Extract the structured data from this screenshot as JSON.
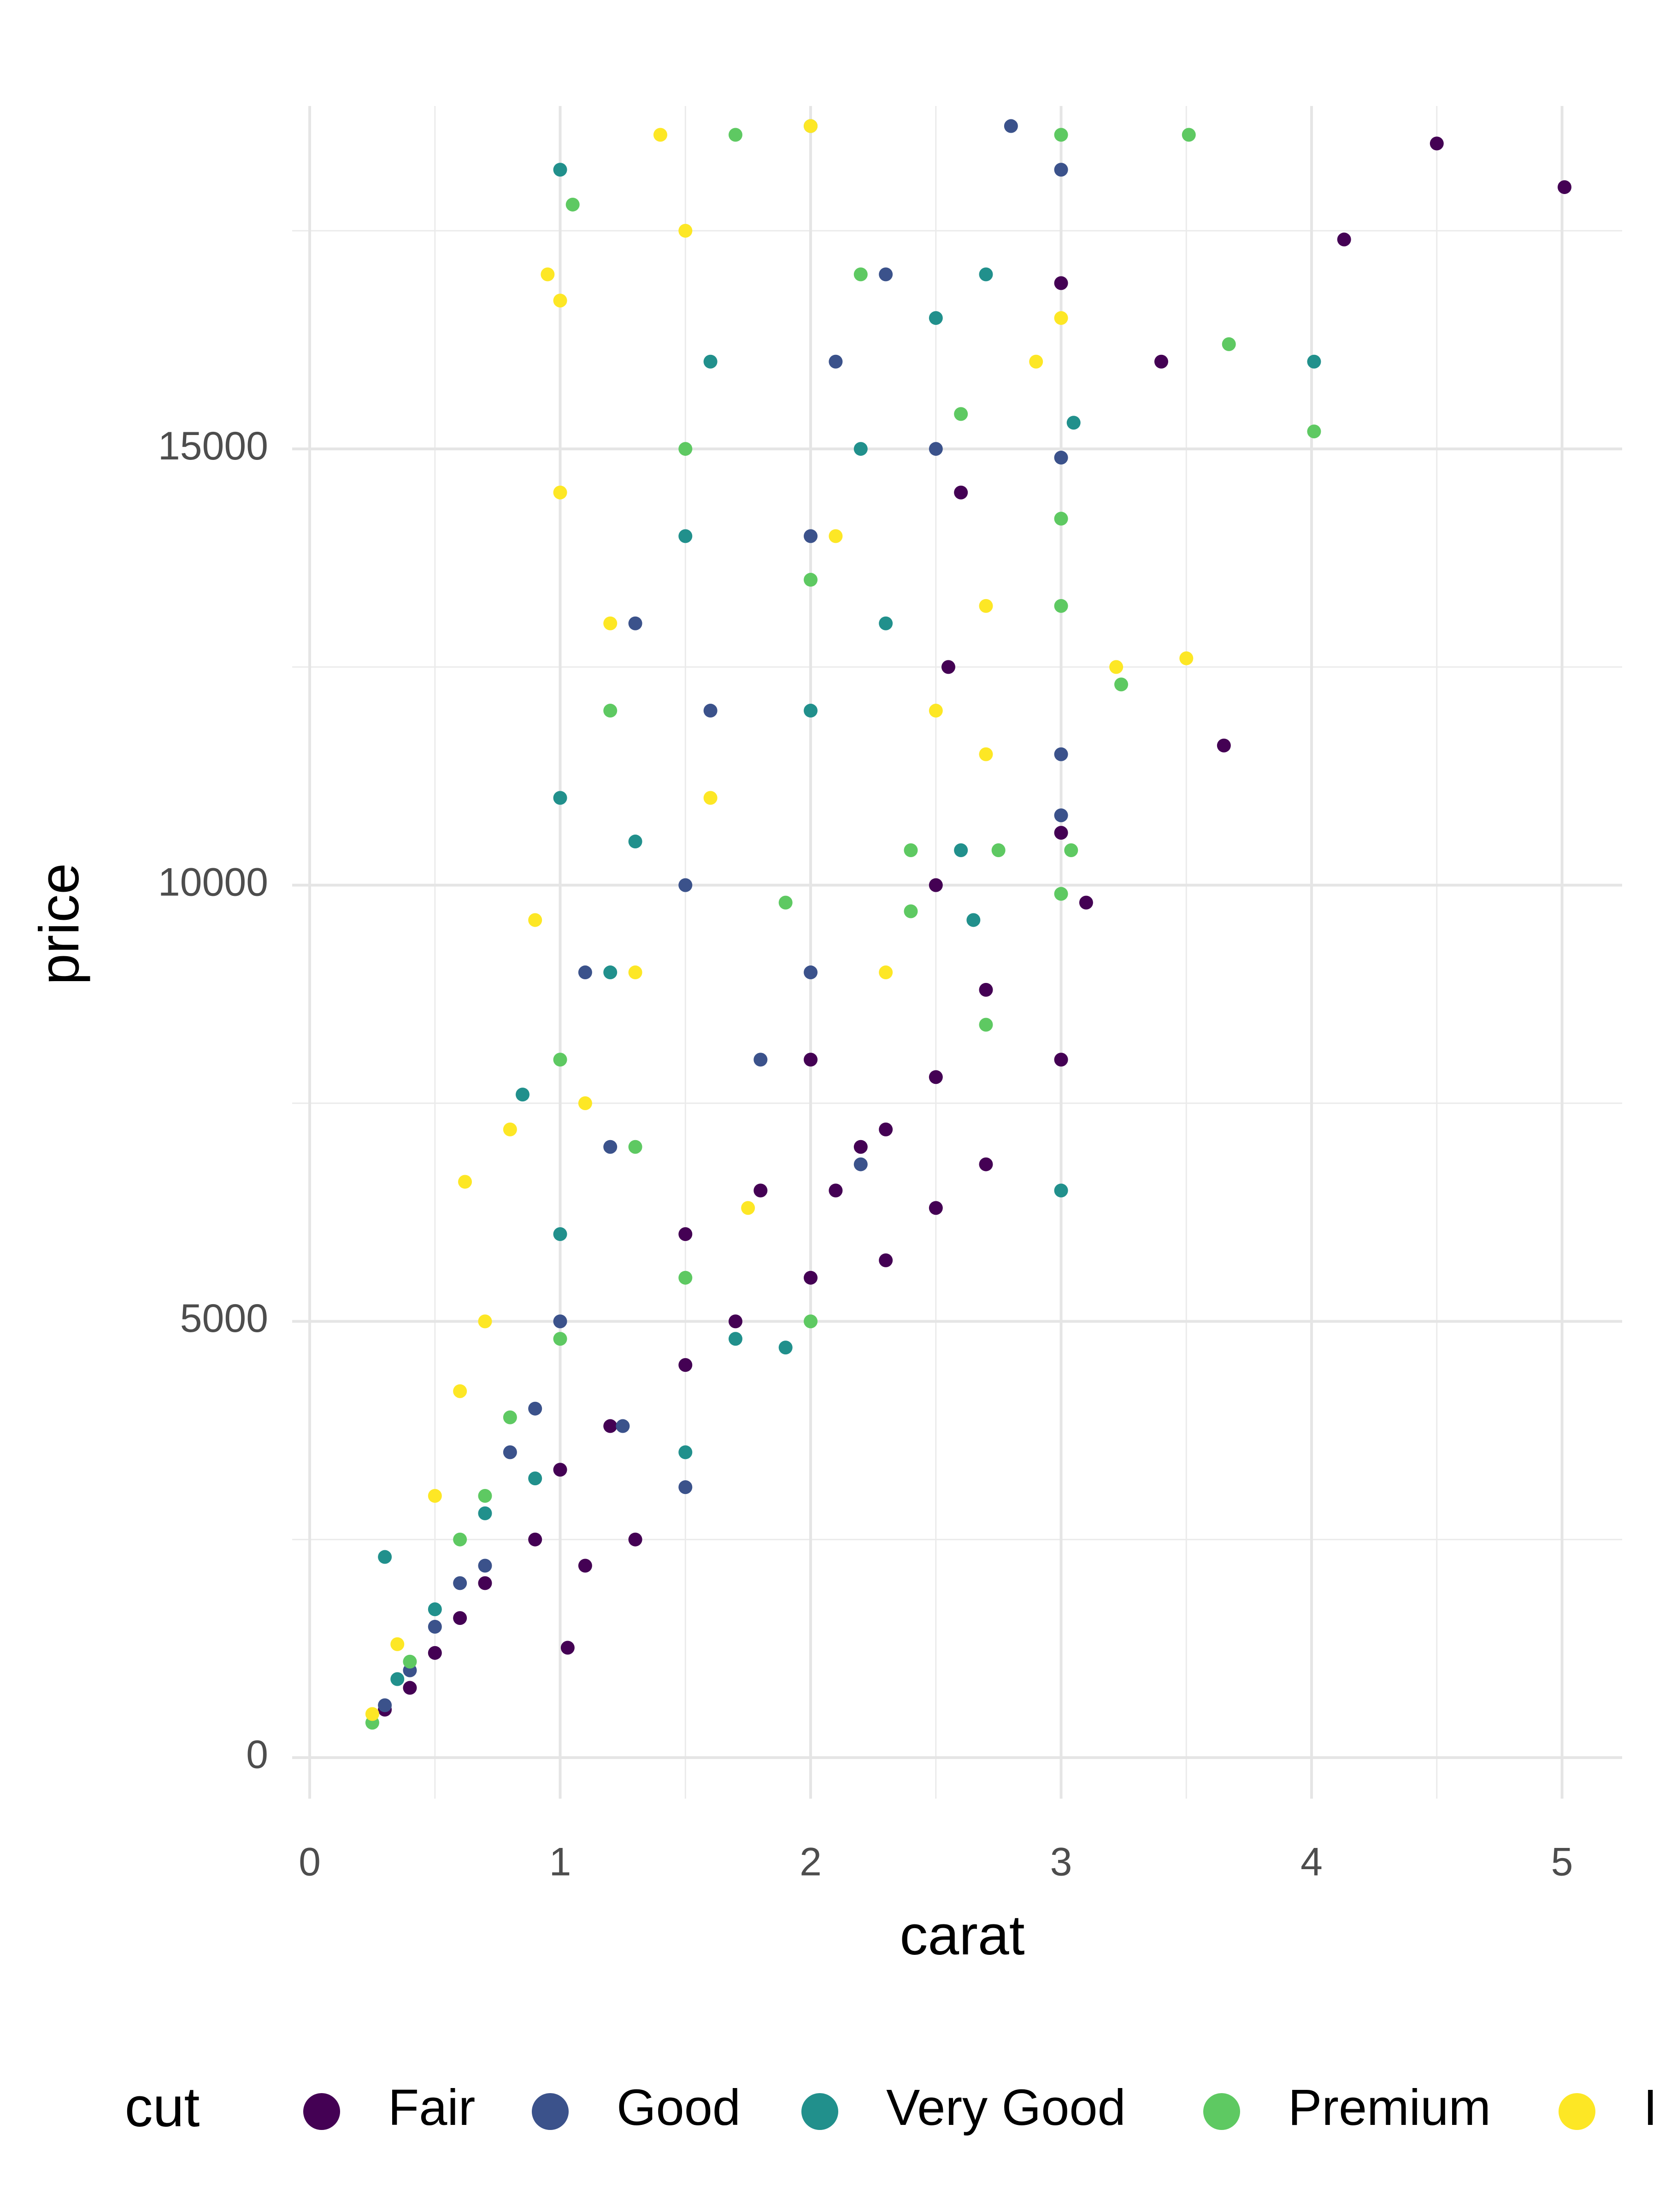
{
  "chart_data": {
    "type": "scatter",
    "x_label": "carat",
    "y_label": "price",
    "xlim": [
      -0.07,
      5.24
    ],
    "ylim": [
      -470,
      18930
    ],
    "xticks": [
      0,
      1,
      2,
      3,
      4,
      5
    ],
    "yticks": [
      0,
      5000,
      10000,
      15000
    ],
    "xminor_ticks": [
      0.5,
      1.5,
      2.5,
      3.5,
      4.5
    ],
    "yminor_ticks": [
      2500,
      7500,
      12500,
      17500
    ],
    "grid": true,
    "legend_title": "cut",
    "legend_position": "bottom",
    "series": [
      {
        "name": "Fair",
        "color": "#440154",
        "x": [
          0.3,
          0.5,
          0.7,
          0.9,
          1.0,
          1.03,
          1.2,
          1.5,
          1.5,
          1.7,
          2.0,
          2.1,
          2.2,
          2.3,
          2.0,
          1.8,
          2.5,
          2.5,
          2.7,
          2.7,
          3.0,
          3.0,
          3.0,
          3.1,
          3.4,
          3.65,
          4.13,
          4.5,
          5.01,
          2.6,
          2.5,
          0.4,
          0.6,
          1.3,
          2.3,
          1.1,
          2.55
        ],
        "values": [
          550,
          1200,
          2000,
          2500,
          3300,
          1260,
          3800,
          4500,
          6000,
          5000,
          5500,
          6500,
          7000,
          7200,
          8000,
          6500,
          6300,
          7800,
          6800,
          8800,
          8000,
          10600,
          16900,
          9800,
          16000,
          11600,
          17400,
          18500,
          18000,
          14500,
          10000,
          800,
          1600,
          2500,
          5700,
          2200,
          12500
        ]
      },
      {
        "name": "Good",
        "color": "#3b528b",
        "x": [
          0.3,
          0.5,
          0.7,
          0.9,
          1.0,
          1.2,
          1.5,
          1.5,
          1.6,
          2.0,
          2.0,
          2.1,
          2.8,
          3.0,
          3.0,
          3.0,
          3.0,
          1.1,
          1.3,
          2.5,
          2.3,
          1.8,
          0.4,
          0.6,
          2.2,
          1.25,
          0.8
        ],
        "values": [
          600,
          1500,
          2200,
          4000,
          5000,
          7000,
          3100,
          10000,
          12000,
          9000,
          14000,
          16000,
          18700,
          18200,
          14900,
          11500,
          10800,
          9000,
          13000,
          15000,
          17000,
          8000,
          1000,
          2000,
          6800,
          3800,
          3500
        ]
      },
      {
        "name": "Very Good",
        "color": "#21908c",
        "x": [
          0.3,
          0.5,
          0.7,
          1.0,
          1.0,
          1.0,
          1.2,
          1.5,
          1.5,
          1.7,
          2.0,
          2.0,
          2.2,
          2.5,
          2.7,
          3.0,
          3.05,
          4.01,
          2.65,
          2.6,
          1.9,
          0.85,
          1.3,
          2.3,
          1.6,
          0.35,
          0.9
        ],
        "values": [
          2300,
          1700,
          2800,
          6000,
          18200,
          11000,
          9000,
          3500,
          14000,
          4800,
          12000,
          18700,
          15000,
          16500,
          17000,
          6500,
          15300,
          16000,
          9600,
          10400,
          4700,
          7600,
          10500,
          13000,
          16000,
          900,
          3200
        ]
      },
      {
        "name": "Premium",
        "color": "#5ec962",
        "x": [
          0.25,
          0.4,
          0.6,
          0.8,
          1.0,
          1.0,
          1.05,
          1.2,
          1.5,
          1.5,
          1.7,
          2.0,
          2.0,
          2.2,
          2.4,
          2.6,
          2.75,
          3.0,
          3.0,
          3.0,
          3.0,
          3.04,
          3.24,
          3.51,
          3.67,
          4.01,
          2.4,
          2.7,
          1.9,
          1.3,
          0.7
        ],
        "values": [
          400,
          1100,
          2500,
          3900,
          4800,
          8000,
          17800,
          12000,
          5500,
          15000,
          18600,
          5000,
          13500,
          17000,
          10400,
          15400,
          10400,
          9900,
          13200,
          14200,
          18600,
          10400,
          12300,
          18600,
          16200,
          15200,
          9700,
          8400,
          9800,
          7000,
          3000
        ]
      },
      {
        "name": "Ideal",
        "color": "#fde725",
        "x": [
          0.25,
          0.35,
          0.5,
          0.6,
          0.62,
          0.7,
          0.9,
          1.0,
          1.0,
          1.2,
          1.3,
          1.5,
          1.6,
          1.4,
          2.0,
          2.1,
          2.5,
          2.7,
          2.7,
          2.9,
          3.0,
          3.22,
          3.5,
          1.1,
          0.8,
          2.3,
          1.75,
          0.95
        ],
        "values": [
          500,
          1300,
          3000,
          4200,
          6600,
          5000,
          9600,
          14500,
          16700,
          13000,
          9000,
          17500,
          11000,
          18600,
          18700,
          14000,
          12000,
          13200,
          11500,
          16000,
          16500,
          12500,
          12600,
          7500,
          7200,
          9000,
          6300,
          17000
        ]
      }
    ]
  }
}
